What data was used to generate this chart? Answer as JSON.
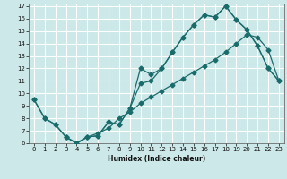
{
  "xlabel": "Humidex (Indice chaleur)",
  "bg_color": "#cce8e8",
  "grid_color": "#ffffff",
  "line_color": "#1a6b6b",
  "xlim": [
    -0.5,
    23.5
  ],
  "ylim": [
    6,
    17.2
  ],
  "xticks": [
    0,
    1,
    2,
    3,
    4,
    5,
    6,
    7,
    8,
    9,
    10,
    11,
    12,
    13,
    14,
    15,
    16,
    17,
    18,
    19,
    20,
    21,
    22,
    23
  ],
  "yticks": [
    6,
    7,
    8,
    9,
    10,
    11,
    12,
    13,
    14,
    15,
    16,
    17
  ],
  "line1_x": [
    0,
    1,
    2,
    3,
    4,
    5,
    6,
    7,
    8,
    9,
    10,
    11,
    12,
    13,
    14,
    15,
    16,
    17,
    18,
    19,
    20,
    21,
    22,
    23
  ],
  "line1_y": [
    9.5,
    8.0,
    7.5,
    6.5,
    6.0,
    6.5,
    6.6,
    7.7,
    7.5,
    8.8,
    12.0,
    11.5,
    12.0,
    13.3,
    14.5,
    15.5,
    16.3,
    16.1,
    17.0,
    15.9,
    15.1,
    13.8,
    12.0,
    11.0
  ],
  "line2_x": [
    3,
    4,
    5,
    6,
    7,
    8,
    9,
    10,
    11,
    12,
    13,
    14,
    15,
    16,
    17,
    18,
    19,
    20,
    21,
    22,
    23
  ],
  "line2_y": [
    6.5,
    6.0,
    6.5,
    6.6,
    7.7,
    7.5,
    8.8,
    10.8,
    11.0,
    12.0,
    13.3,
    14.5,
    15.5,
    16.3,
    16.1,
    17.0,
    15.9,
    15.1,
    13.8,
    12.0,
    11.0
  ],
  "line3_x": [
    0,
    1,
    2,
    3,
    4,
    5,
    6,
    7,
    8,
    9,
    10,
    11,
    12,
    13,
    14,
    15,
    16,
    17,
    18,
    19,
    20,
    21,
    22,
    23
  ],
  "line3_y": [
    9.5,
    8.0,
    7.5,
    6.5,
    6.0,
    6.5,
    6.8,
    7.2,
    8.0,
    8.5,
    9.2,
    9.7,
    10.2,
    10.7,
    11.2,
    11.7,
    12.2,
    12.7,
    13.3,
    14.0,
    14.7,
    14.5,
    13.5,
    11.0
  ]
}
